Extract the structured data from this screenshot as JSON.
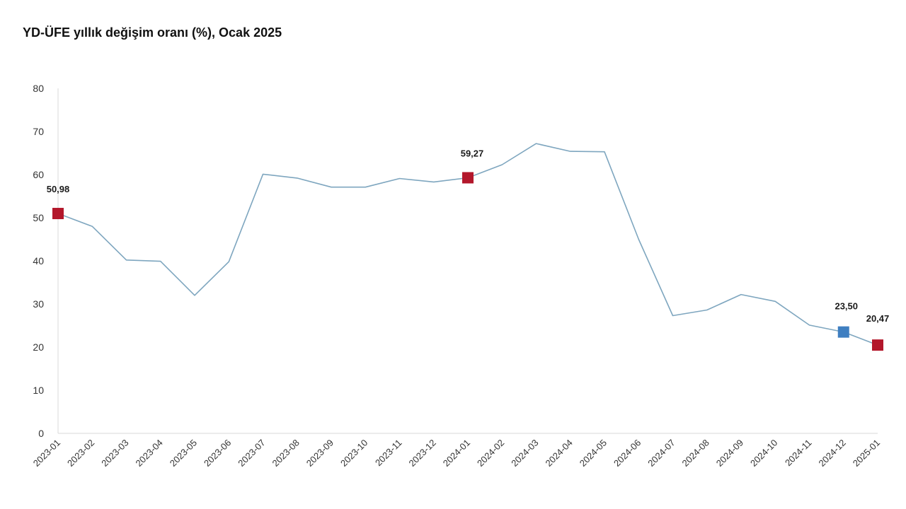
{
  "chart_data": {
    "type": "line",
    "title": "YD-ÜFE yıllık değişim oranı (%), Ocak 2025",
    "xlabel": "",
    "ylabel": "",
    "ylim": [
      0,
      80
    ],
    "yticks": [
      0,
      10,
      20,
      30,
      40,
      50,
      60,
      70,
      80
    ],
    "grid": false,
    "legend": "none",
    "line_color": "#7ea6bf",
    "categories": [
      "2023-01",
      "2023-02",
      "2023-03",
      "2023-04",
      "2023-05",
      "2023-06",
      "2023-07",
      "2023-08",
      "2023-09",
      "2023-10",
      "2023-11",
      "2023-12",
      "2024-01",
      "2024-02",
      "2024-03",
      "2024-04",
      "2024-05",
      "2024-06",
      "2024-07",
      "2024-08",
      "2024-09",
      "2024-10",
      "2024-11",
      "2024-12",
      "2025-01"
    ],
    "series": [
      {
        "values": [
          50.98,
          48.0,
          40.2,
          39.9,
          32.0,
          39.8,
          60.1,
          59.2,
          57.1,
          57.1,
          59.1,
          58.3,
          59.27,
          62.3,
          67.2,
          65.4,
          65.3,
          45.0,
          27.3,
          28.6,
          32.2,
          30.6,
          25.1,
          23.5,
          20.47
        ]
      }
    ],
    "markers": [
      {
        "index": 0,
        "label": "50,98",
        "color": "#b3172b"
      },
      {
        "index": 12,
        "label": "59,27",
        "color": "#b3172b"
      },
      {
        "index": 23,
        "label": "23,50",
        "color": "#3f7fc1"
      },
      {
        "index": 24,
        "label": "20,47",
        "color": "#b3172b"
      }
    ]
  }
}
